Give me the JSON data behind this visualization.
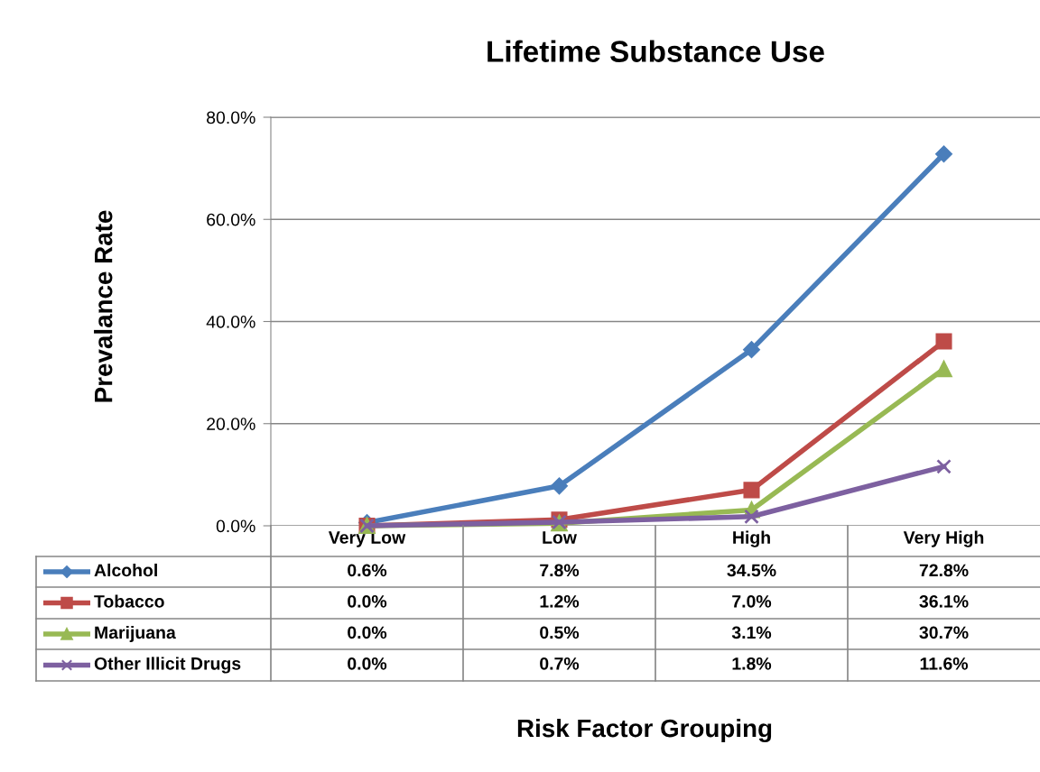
{
  "chart_data": {
    "type": "line",
    "title": "Lifetime Substance Use",
    "annotations": [
      "Risk Factor Grouping"
    ],
    "ylabel": "Prevalance Rate",
    "categories": [
      "Very Low",
      "Low",
      "High",
      "Very High"
    ],
    "series": [
      {
        "name": "Alcohol",
        "color": "#4a7ebb",
        "marker": "diamond",
        "values": [
          0.6,
          7.8,
          34.5,
          72.8
        ],
        "value_labels": [
          "0.6%",
          "7.8%",
          "34.5%",
          "72.8%"
        ]
      },
      {
        "name": "Tobacco",
        "color": "#be4b48",
        "marker": "square",
        "values": [
          0.0,
          1.2,
          7.0,
          36.1
        ],
        "value_labels": [
          "0.0%",
          "1.2%",
          "7.0%",
          "36.1%"
        ]
      },
      {
        "name": "Marijuana",
        "color": "#98b954",
        "marker": "triangle",
        "values": [
          0.0,
          0.5,
          3.1,
          30.7
        ],
        "value_labels": [
          "0.0%",
          "0.5%",
          "3.1%",
          "30.7%"
        ]
      },
      {
        "name": "Other Illicit Drugs",
        "color": "#7d60a0",
        "marker": "cross",
        "values": [
          0.0,
          0.7,
          1.8,
          11.6
        ],
        "value_labels": [
          "0.0%",
          "0.7%",
          "1.8%",
          "11.6%"
        ]
      }
    ],
    "ylim": [
      0,
      80
    ],
    "yticks": [
      {
        "value": 0,
        "label": "0.0%"
      },
      {
        "value": 20,
        "label": "20.0%"
      },
      {
        "value": 40,
        "label": "40.0%"
      },
      {
        "value": 60,
        "label": "60.0%"
      },
      {
        "value": 80,
        "label": "80.0%"
      }
    ],
    "grid": "y",
    "line_style": "solid",
    "legend": "bottom left"
  }
}
